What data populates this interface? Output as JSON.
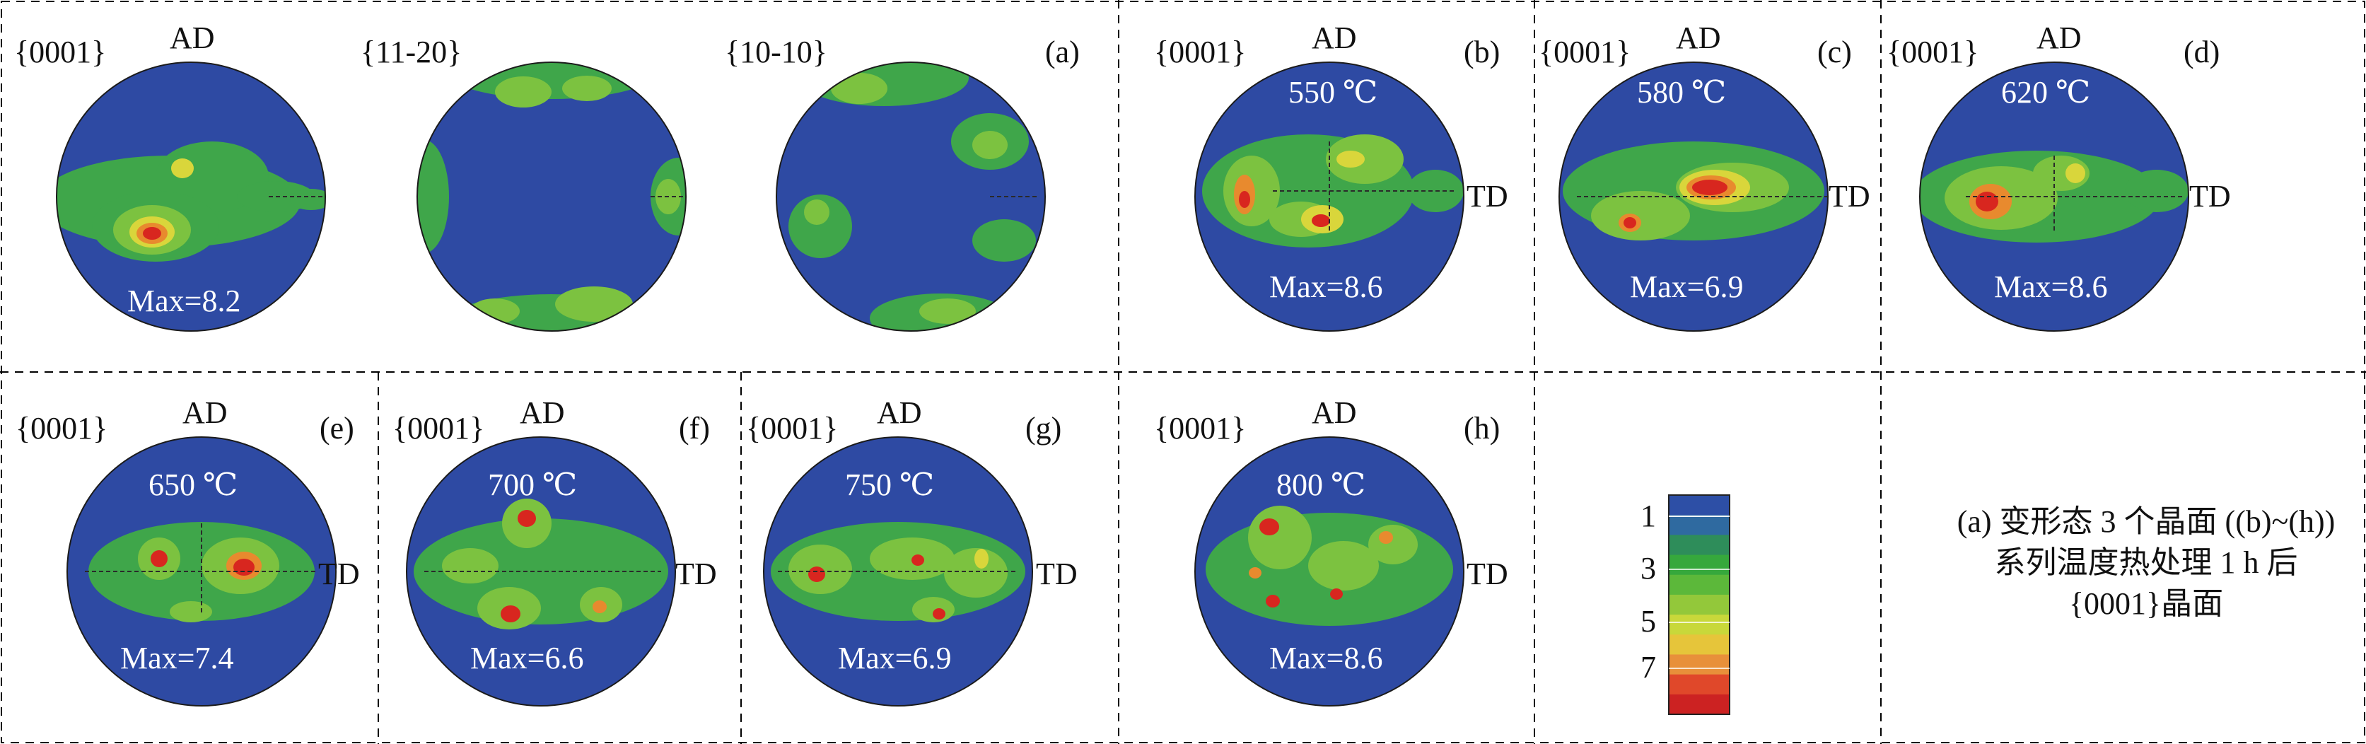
{
  "figure": {
    "caption": "(a) 变形态 3 个晶面 ((b)~(h)) 系列温度热处理 1 h 后 {0001}晶面"
  },
  "caption_lines": [
    "(a) 变形态 3 个晶面 ((b)~(h))",
    "系列温度热处理 1 h 后",
    "{0001}晶面"
  ],
  "axis_labels": {
    "ad": "AD",
    "td": "TD"
  },
  "panels": [
    {
      "letter": "(a)",
      "poles": [
        "{0001}",
        "{11-20}",
        "{10-10}"
      ],
      "max": "Max=8.2",
      "temperature": ""
    },
    {
      "letter": "(b)",
      "poles": [
        "{0001}"
      ],
      "temperature": "550 ℃",
      "max": "Max=8.6"
    },
    {
      "letter": "(c)",
      "poles": [
        "{0001}"
      ],
      "temperature": "580 ℃",
      "max": "Max=6.9"
    },
    {
      "letter": "(d)",
      "poles": [
        "{0001}"
      ],
      "temperature": "620 ℃",
      "max": "Max=8.6"
    },
    {
      "letter": "(e)",
      "poles": [
        "{0001}"
      ],
      "temperature": "650 ℃",
      "max": "Max=7.4"
    },
    {
      "letter": "(f)",
      "poles": [
        "{0001}"
      ],
      "temperature": "700 ℃",
      "max": "Max=6.6"
    },
    {
      "letter": "(g)",
      "poles": [
        "{0001}"
      ],
      "temperature": "750 ℃",
      "max": "Max=6.9"
    },
    {
      "letter": "(h)",
      "poles": [
        "{0001}"
      ],
      "temperature": "800 ℃",
      "max": "Max=8.6"
    }
  ],
  "legend": {
    "labels": [
      "1",
      "3",
      "5",
      "7"
    ],
    "colors": [
      "#2d4fa6",
      "#2f6aa0",
      "#2e8d5a",
      "#36a83c",
      "#5cb83a",
      "#93c83a",
      "#c8d83a",
      "#e6c53a",
      "#e8903a",
      "#e0482a",
      "#cc2222"
    ]
  },
  "colors": {
    "background": "#2e4aa3",
    "green_low": "#3fa64a",
    "green_mid": "#7cc240",
    "yellow": "#d9d63b",
    "orange": "#e88a2e",
    "red": "#d8261f",
    "core": "#8c1010"
  }
}
